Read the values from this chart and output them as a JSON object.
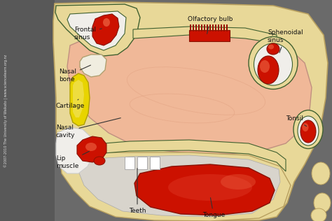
{
  "bg_color": "#6a6a6a",
  "bone_color": "#e8d898",
  "bone_edge": "#b8a060",
  "skin_pink": "#f0b898",
  "skin_light": "#f5cdb0",
  "red_dark": "#cc1100",
  "red_mid": "#dd3320",
  "red_light": "#ee6644",
  "white_tissue": "#f0eeea",
  "gray_tissue": "#d8d4cc",
  "cartilage_yellow": "#e8d400",
  "cartilage_light": "#f0e050",
  "green_outline": "#406030",
  "left_panel_color": "#585858",
  "labels": {
    "frontal_sinus": "Frontal\nsinus",
    "nasal_bone": "Nasal\nbone",
    "cartilage": "Cartilage",
    "nasal_cavity": "Nasal\ncavity",
    "lip_muscle": "Lip\nmuscle",
    "olfactory_bulb": "Olfactory bulb",
    "sphenoidal_sinus": "Sphenoidal\nsinus",
    "tonsil": "Tonsil",
    "teeth": "Teeth",
    "tongue": "Tongue"
  },
  "watermark": "©2007-2010 The University of Waikato | www.sciencelearn.org.nz",
  "figsize": [
    4.74,
    3.16
  ],
  "dpi": 100
}
